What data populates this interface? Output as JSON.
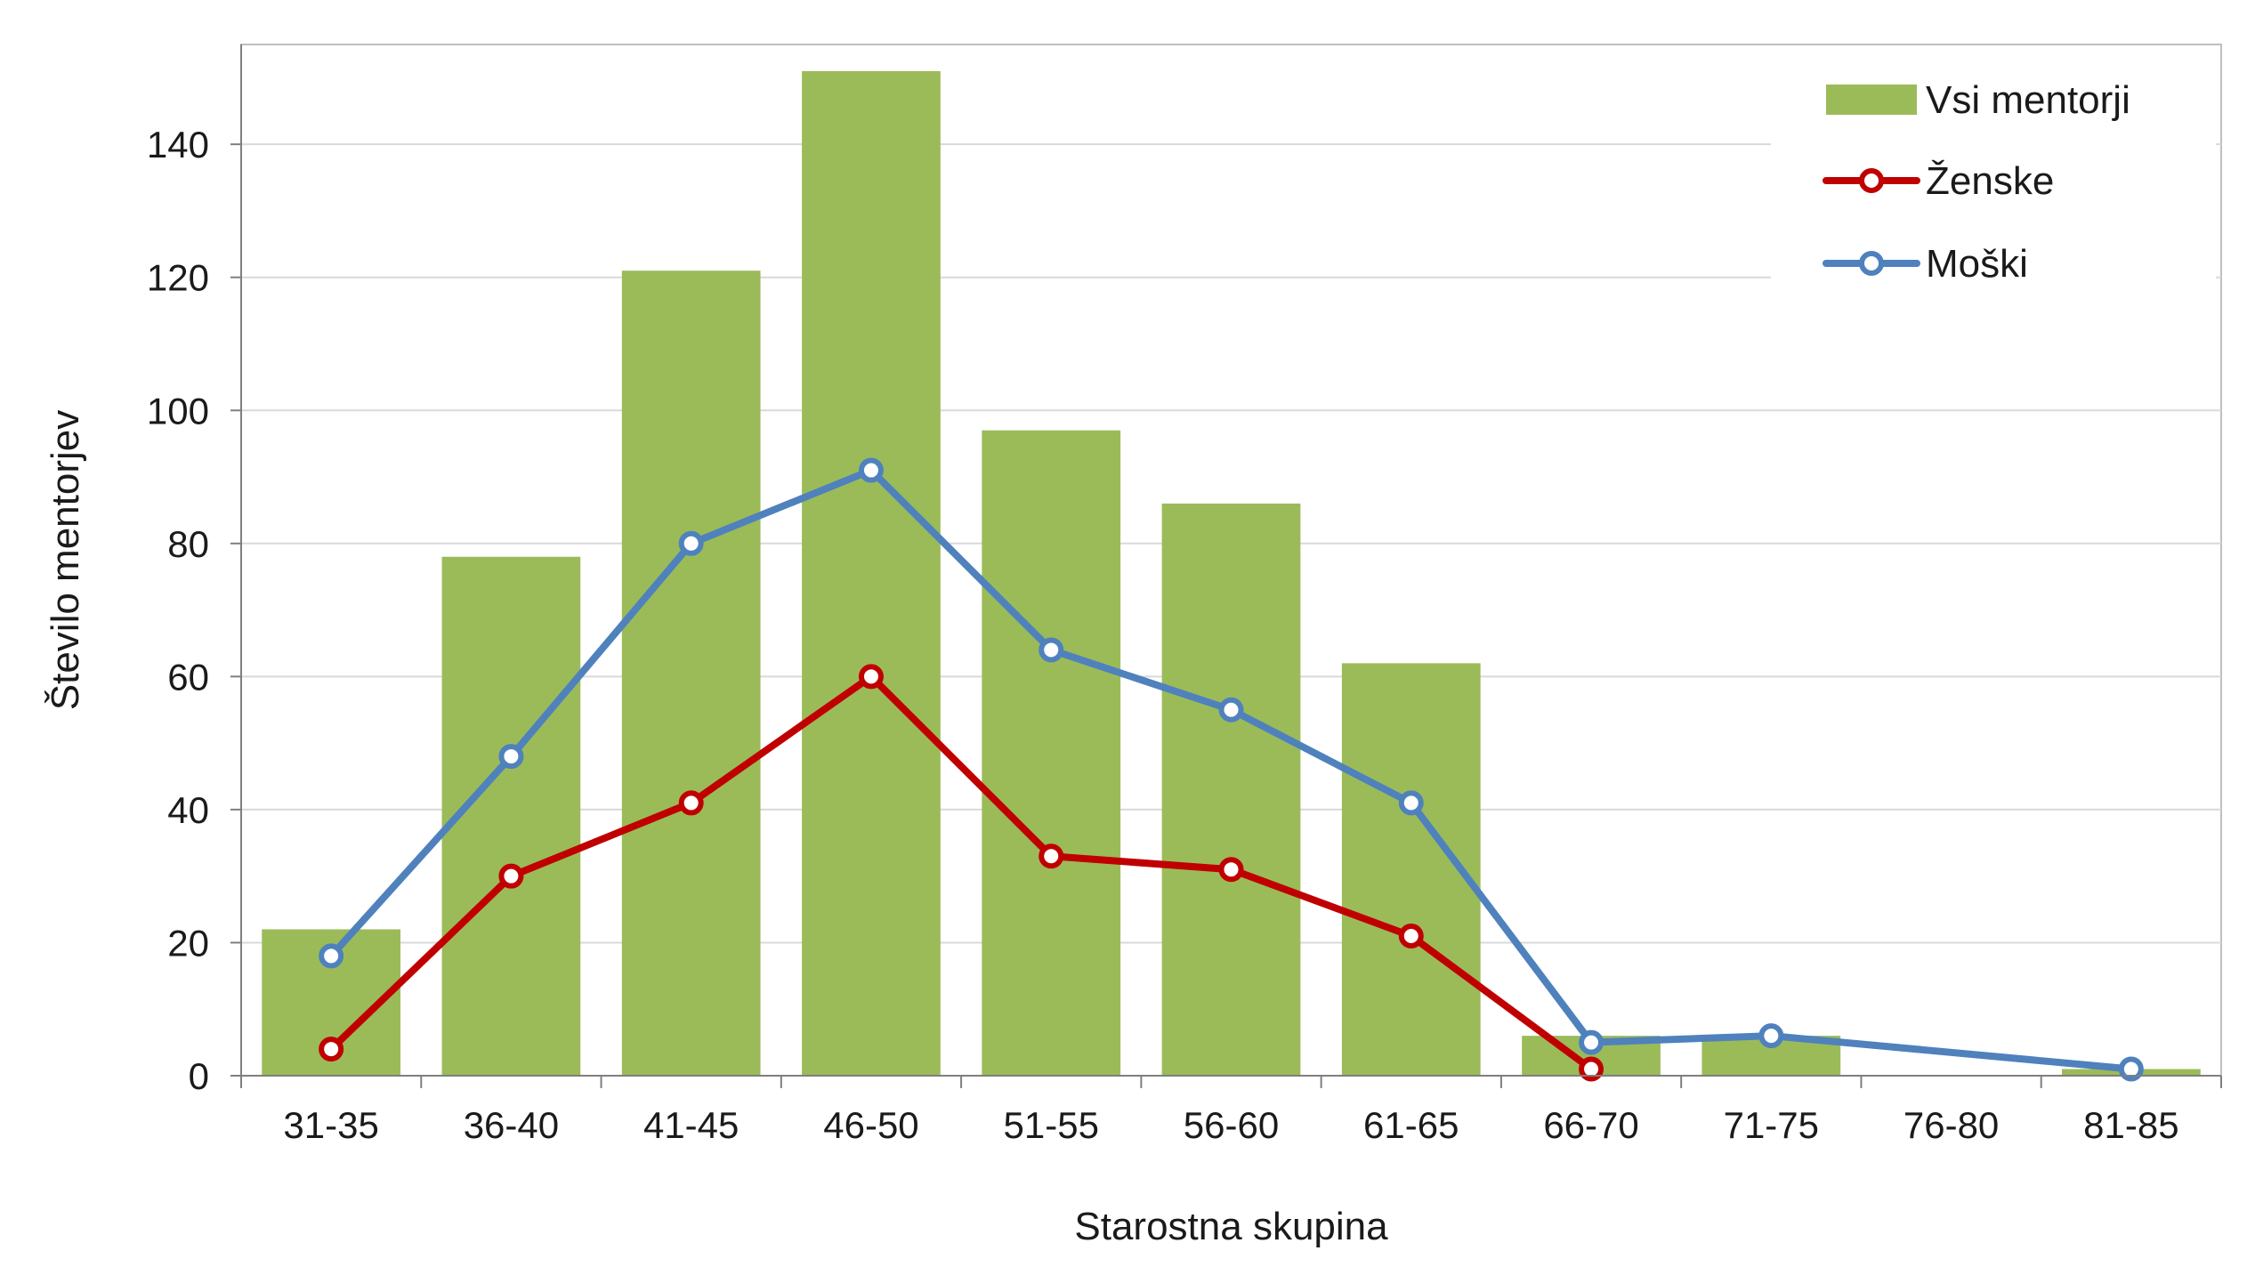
{
  "chart_data": {
    "type": "bar",
    "categories": [
      "31-35",
      "36-40",
      "41-45",
      "46-50",
      "51-55",
      "56-60",
      "61-65",
      "66-70",
      "71-75",
      "76-80",
      "81-85"
    ],
    "series": [
      {
        "name": "Vsi mentorji",
        "type": "bar",
        "color": "#9bbb59",
        "values": [
          22,
          78,
          121,
          151,
          97,
          86,
          62,
          6,
          6,
          0,
          1
        ]
      },
      {
        "name": "Ženske",
        "type": "line",
        "color": "#c00000",
        "values": [
          4,
          30,
          41,
          60,
          33,
          31,
          21,
          1,
          null,
          null,
          null
        ]
      },
      {
        "name": "Moški",
        "type": "line",
        "color": "#4f81bd",
        "values": [
          18,
          48,
          80,
          91,
          64,
          55,
          41,
          5,
          6,
          null,
          1
        ]
      }
    ],
    "xlabel": "Starostna skupina",
    "ylabel": "Število mentorjev",
    "ylim": [
      0,
      155
    ],
    "yticks": [
      0,
      20,
      40,
      60,
      80,
      100,
      120,
      140
    ],
    "grid": true,
    "legend_position": "top-right"
  }
}
